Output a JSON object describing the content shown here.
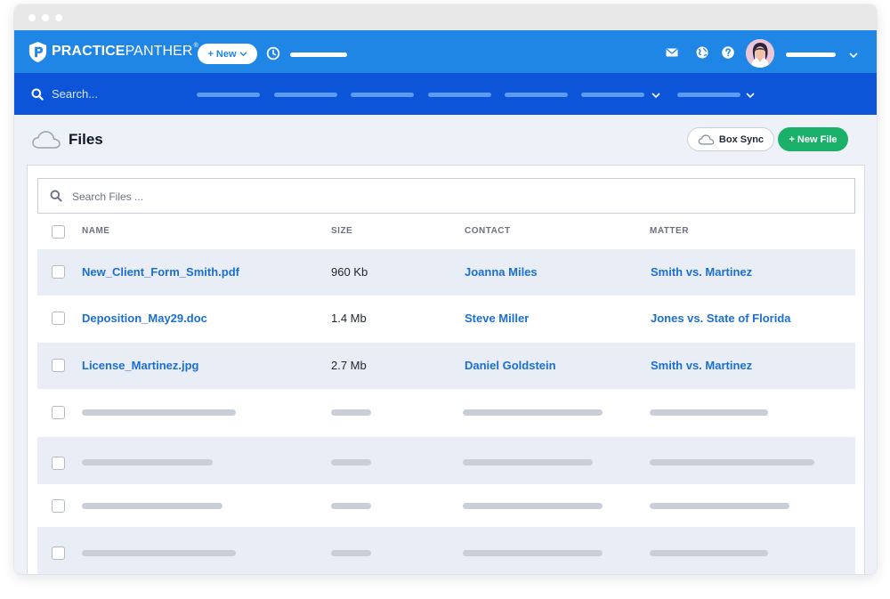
{
  "header": {
    "brand": {
      "bold": "PRACTICE",
      "thin": "PANTHER",
      "reg": "®"
    },
    "new_button": "+ New"
  },
  "nav": {
    "search_label": "Search..."
  },
  "page": {
    "title": "Files",
    "box_sync_label": "Box Sync",
    "new_file_label": "+ New File"
  },
  "search": {
    "placeholder": "Search Files ..."
  },
  "table": {
    "columns": [
      "NAME",
      "SIZE",
      "CONTACT",
      "MATTER"
    ],
    "rows": [
      {
        "name": "New_Client_Form_Smith.pdf",
        "size": "960 Kb",
        "contact": "Joanna Miles",
        "matter": "Smith vs. Martinez"
      },
      {
        "name": "Deposition_May29.doc",
        "size": "1.4 Mb",
        "contact": "Steve Miller",
        "matter": "Jones vs. State of Florida"
      },
      {
        "name": "License_Martinez.jpg",
        "size": "2.7 Mb",
        "contact": "Daniel Goldstein",
        "matter": "Smith vs. Martinez"
      }
    ]
  },
  "colors": {
    "topbar": "#1f86e6",
    "navbar": "#0c55d8",
    "link": "#1b6fd1",
    "new_file_green": "#1bb06a",
    "stripe": "#e9edf5"
  },
  "icons": [
    "panther-logo-icon",
    "clock-icon",
    "mail-icon",
    "globe-icon",
    "help-icon",
    "user-avatar",
    "chevron-down-icon",
    "search-icon",
    "cloud-icon"
  ]
}
